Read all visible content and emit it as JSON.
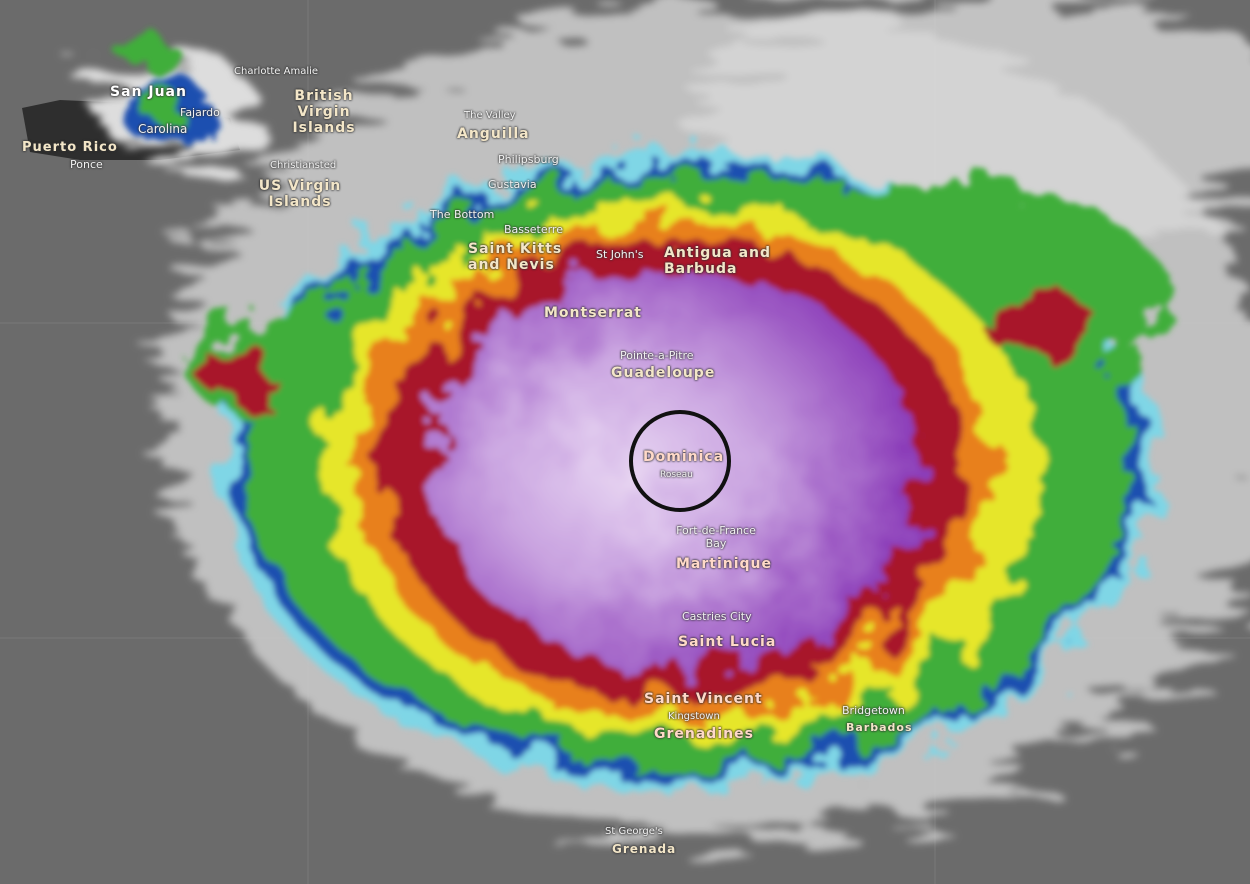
{
  "map": {
    "type": "satellite infrared overlay",
    "colors": {
      "ocean": "#6b6b6b",
      "land": "#2e2e2e",
      "cloud": "#d8d8d8",
      "cyan": "#7fd6e6",
      "blue": "#1f4fb0",
      "green": "#3fae3a",
      "yellow": "#e6e62a",
      "orange": "#e8801e",
      "red": "#a8162a",
      "purple": "#8a3bb8",
      "lavender": "#c9a3e0"
    },
    "highlight_marker": "black circle around Dominica",
    "labels": {
      "san_juan": "San Juan",
      "fajardo": "Fajardo",
      "carolina": "Carolina",
      "puerto_rico": "Puerto Rico",
      "ponce": "Ponce",
      "charlotte_amalie": "Charlotte Amalie",
      "bvi": "British Virgin Islands",
      "christiansted": "Christiansted",
      "usvi": "US Virgin Islands",
      "the_valley": "The Valley",
      "anguilla": "Anguilla",
      "philipsburg": "Philipsburg",
      "gustavia": "Gustavia",
      "the_bottom": "The Bottom",
      "basseterre": "Basseterre",
      "st_kitts": "Saint Kitts and Nevis",
      "st_johns": "St John's",
      "antigua": "Antigua and Barbuda",
      "montserrat": "Montserrat",
      "pointe_a_pitre": "Pointe-a-Pitre",
      "guadeloupe": "Guadeloupe",
      "dominica": "Dominica",
      "roseau": "Roseau",
      "fort_de_france": "Fort-de-France Bay",
      "martinique": "Martinique",
      "castries": "Castries City",
      "saint_lucia": "Saint Lucia",
      "saint_vincent": "Saint Vincent",
      "kingstown": "Kingstown",
      "grenadines": "Grenadines",
      "bridgetown": "Bridgetown",
      "barbados": "Barbados",
      "st_georges": "St George's",
      "grenada": "Grenada"
    }
  }
}
